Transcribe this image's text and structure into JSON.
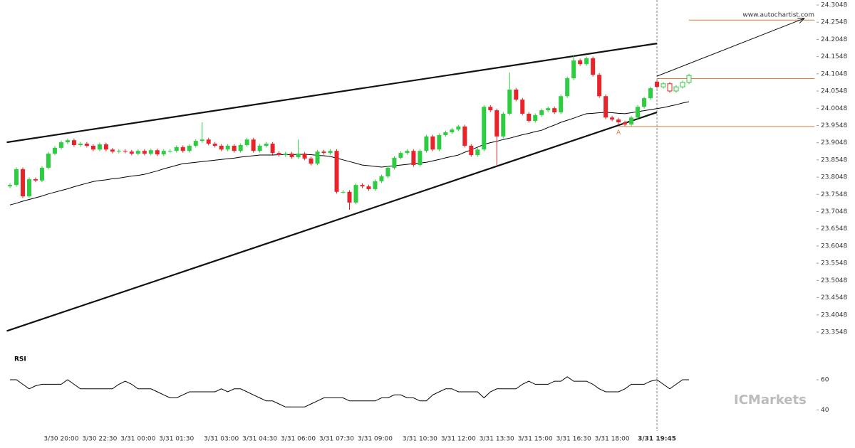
{
  "chart_data": [
    {
      "type": "candlestick",
      "categories": [
        null,
        null,
        null,
        null,
        null,
        null,
        null,
        null,
        "3/30 20:00",
        null,
        null,
        null,
        null,
        null,
        "3/30 22:30",
        null,
        null,
        null,
        null,
        null,
        "3/31 00:00",
        null,
        null,
        null,
        null,
        null,
        "3/31 01:30",
        null,
        null,
        null,
        null,
        null,
        null,
        "3/31 03:00",
        null,
        null,
        null,
        null,
        null,
        "3/31 04:30",
        null,
        null,
        null,
        null,
        null,
        "3/31 06:00",
        null,
        null,
        null,
        null,
        null,
        "3/31 07:30",
        null,
        null,
        null,
        null,
        null,
        "3/31 09:00",
        null,
        null,
        null,
        null,
        null,
        null,
        "3/31 10:30",
        null,
        null,
        null,
        null,
        null,
        "3/31 12:00",
        null,
        null,
        null,
        null,
        null,
        "3/31 13:30",
        null,
        null,
        null,
        null,
        null,
        "3/31 15:00",
        null,
        null,
        null,
        null,
        null,
        "3/31 16:30",
        null,
        null,
        null,
        null,
        null,
        "3/31 18:00",
        null,
        null,
        null,
        null,
        null,
        null,
        "3/31 19:45",
        null,
        null,
        null,
        null,
        null
      ],
      "open": [
        23.778,
        23.782,
        23.828,
        23.749,
        23.799,
        23.795,
        23.832,
        23.873,
        23.89,
        23.906,
        23.912,
        23.898,
        23.902,
        23.896,
        23.885,
        23.9,
        23.885,
        23.879,
        23.881,
        23.879,
        23.873,
        23.881,
        23.873,
        23.883,
        23.871,
        23.881,
        23.881,
        23.892,
        23.881,
        23.896,
        23.91,
        23.914,
        23.902,
        23.896,
        23.885,
        23.896,
        23.881,
        23.898,
        23.914,
        23.881,
        23.896,
        23.902,
        23.875,
        23.869,
        23.873,
        23.863,
        23.873,
        23.859,
        23.844,
        23.879,
        23.875,
        23.881,
        23.762,
        23.762,
        23.731,
        23.782,
        23.778,
        23.77,
        23.793,
        23.807,
        23.832,
        23.861,
        23.875,
        23.881,
        23.84,
        23.881,
        23.923,
        23.885,
        23.927,
        23.935,
        23.943,
        23.952,
        23.896,
        23.869,
        23.885,
        24.009,
        23.999,
        23.923,
        23.989,
        24.059,
        24.03,
        23.989,
        23.968,
        23.985,
        23.999,
        24.005,
        23.993,
        24.04,
        24.092,
        24.144,
        24.133,
        24.15,
        24.102,
        24.04,
        23.978,
        23.972,
        23.964,
        23.958,
        23.978,
        24.009,
        24.034,
        24.082,
        24.067,
        24.076,
        24.055,
        24.067,
        24.08
      ],
      "high": [
        23.787,
        23.833,
        23.833,
        23.804,
        23.804,
        23.837,
        23.878,
        23.895,
        23.911,
        23.917,
        23.917,
        23.907,
        23.907,
        23.901,
        23.905,
        23.905,
        23.89,
        23.886,
        23.886,
        23.884,
        23.886,
        23.886,
        23.888,
        23.888,
        23.886,
        23.886,
        23.897,
        23.897,
        23.901,
        23.915,
        23.964,
        23.919,
        23.907,
        23.901,
        23.901,
        23.901,
        23.903,
        23.919,
        23.919,
        23.901,
        23.907,
        23.907,
        23.88,
        23.878,
        23.878,
        23.914,
        23.878,
        23.864,
        23.884,
        23.884,
        23.886,
        23.886,
        23.767,
        23.767,
        23.787,
        23.787,
        23.783,
        23.798,
        23.812,
        23.837,
        23.866,
        23.88,
        23.886,
        23.886,
        23.886,
        23.928,
        23.928,
        23.932,
        23.94,
        23.948,
        23.957,
        23.957,
        23.901,
        23.89,
        24.014,
        24.014,
        24.004,
        23.994,
        24.109,
        24.064,
        24.035,
        23.994,
        23.99,
        24.004,
        24.01,
        24.01,
        24.045,
        24.097,
        24.16,
        24.149,
        24.155,
        24.155,
        24.107,
        24.045,
        23.983,
        23.977,
        23.969,
        23.983,
        24.014,
        24.039,
        24.068,
        24.087,
        24.081,
        24.081,
        24.072,
        24.085,
        24.105
      ],
      "low": [
        23.773,
        23.777,
        23.744,
        23.744,
        23.79,
        23.79,
        23.827,
        23.868,
        23.885,
        23.901,
        23.893,
        23.893,
        23.891,
        23.88,
        23.88,
        23.88,
        23.874,
        23.874,
        23.874,
        23.868,
        23.868,
        23.868,
        23.868,
        23.866,
        23.866,
        23.876,
        23.876,
        23.876,
        23.876,
        23.891,
        23.905,
        23.897,
        23.891,
        23.88,
        23.88,
        23.876,
        23.876,
        23.893,
        23.876,
        23.876,
        23.891,
        23.87,
        23.864,
        23.864,
        23.858,
        23.858,
        23.854,
        23.839,
        23.839,
        23.87,
        23.87,
        23.757,
        23.757,
        23.71,
        23.726,
        23.773,
        23.765,
        23.765,
        23.788,
        23.802,
        23.827,
        23.856,
        23.87,
        23.835,
        23.835,
        23.876,
        23.88,
        23.88,
        23.922,
        23.93,
        23.938,
        23.891,
        23.864,
        23.864,
        23.88,
        23.994,
        23.84,
        23.918,
        23.984,
        24.025,
        23.984,
        23.963,
        23.963,
        23.98,
        23.994,
        23.988,
        23.988,
        24.035,
        24.087,
        24.128,
        24.128,
        24.097,
        24.035,
        23.973,
        23.967,
        23.959,
        23.953,
        23.953,
        23.973,
        24.004,
        24.029,
        24.062,
        24.062,
        24.05,
        24.05,
        24.062,
        24.075
      ],
      "close": [
        23.782,
        23.828,
        23.749,
        23.799,
        23.795,
        23.832,
        23.873,
        23.89,
        23.906,
        23.912,
        23.898,
        23.902,
        23.896,
        23.885,
        23.9,
        23.885,
        23.879,
        23.881,
        23.879,
        23.873,
        23.881,
        23.873,
        23.883,
        23.871,
        23.881,
        23.881,
        23.892,
        23.881,
        23.896,
        23.91,
        23.914,
        23.902,
        23.896,
        23.885,
        23.896,
        23.881,
        23.898,
        23.914,
        23.881,
        23.896,
        23.902,
        23.875,
        23.869,
        23.873,
        23.863,
        23.873,
        23.859,
        23.844,
        23.879,
        23.875,
        23.881,
        23.762,
        23.762,
        23.731,
        23.782,
        23.778,
        23.77,
        23.793,
        23.807,
        23.832,
        23.861,
        23.875,
        23.881,
        23.84,
        23.881,
        23.923,
        23.885,
        23.927,
        23.935,
        23.943,
        23.952,
        23.896,
        23.869,
        23.885,
        24.009,
        23.999,
        23.923,
        23.989,
        24.059,
        24.03,
        23.989,
        23.968,
        23.985,
        23.999,
        24.005,
        23.993,
        24.04,
        24.092,
        24.144,
        24.133,
        24.15,
        24.102,
        24.04,
        23.978,
        23.972,
        23.964,
        23.958,
        23.978,
        24.009,
        24.034,
        24.063,
        24.067,
        24.076,
        24.055,
        24.067,
        24.08,
        24.1
      ],
      "up_color": "#2ecc40",
      "down_color": "#e8232a",
      "ma": {
        "color": "#000000",
        "values": [
          23.724,
          23.729,
          23.735,
          23.74,
          23.745,
          23.75,
          23.756,
          23.761,
          23.766,
          23.771,
          23.777,
          23.782,
          23.787,
          23.792,
          23.795,
          23.797,
          23.8,
          23.802,
          23.805,
          23.808,
          23.81,
          23.813,
          23.818,
          23.823,
          23.829,
          23.834,
          23.839,
          23.844,
          23.846,
          23.848,
          23.85,
          23.852,
          23.854,
          23.856,
          23.858,
          23.86,
          23.863,
          23.865,
          23.867,
          23.869,
          23.869,
          23.869,
          23.87,
          23.87,
          23.87,
          23.871,
          23.871,
          23.87,
          23.868,
          23.867,
          23.865,
          23.86,
          23.855,
          23.85,
          23.845,
          23.84,
          23.838,
          23.836,
          23.834,
          23.836,
          23.838,
          23.84,
          23.842,
          23.844,
          23.846,
          23.848,
          23.852,
          23.856,
          23.861,
          23.865,
          23.869,
          23.877,
          23.884,
          23.892,
          23.9,
          23.905,
          23.909,
          23.914,
          23.918,
          23.923,
          23.928,
          23.932,
          23.937,
          23.941,
          23.949,
          23.956,
          23.964,
          23.97,
          23.976,
          23.983,
          23.989,
          23.99,
          23.992,
          23.993,
          23.992,
          23.99,
          23.989,
          23.992,
          23.995,
          23.998,
          24.001,
          24.004,
          24.007,
          24.011,
          24.015,
          24.02,
          24.024
        ]
      },
      "ylim": [
        23.3548,
        24.3048
      ],
      "yticks": [
        24.3048,
        24.2548,
        24.2048,
        24.1548,
        24.1048,
        24.0548,
        24.0048,
        23.9548,
        23.9048,
        23.8548,
        23.8048,
        23.7548,
        23.7048,
        23.6548,
        23.6048,
        23.5548,
        23.5048,
        23.4548,
        23.4048,
        23.3548
      ],
      "trendlines": [
        {
          "from": [
            -0.5,
            23.906
          ],
          "to": [
            101,
            24.193
          ]
        },
        {
          "from": [
            -0.5,
            23.358
          ],
          "to": [
            101,
            23.993
          ]
        }
      ],
      "arrow": {
        "from": [
          101,
          24.098
        ],
        "to": [
          124,
          24.266
        ]
      },
      "levels": [
        {
          "from": [
            106,
            24.261
          ],
          "to": [
            125.6,
            24.261
          ]
        },
        {
          "from": [
            101,
            24.091
          ],
          "to": [
            125.6,
            24.091
          ]
        },
        {
          "from": [
            95,
            23.952
          ],
          "to": [
            125.6,
            23.952
          ]
        }
      ],
      "level_color": "#e07b39",
      "point_label": {
        "text": "A",
        "at": [
          95,
          23.934
        ]
      }
    },
    {
      "type": "line",
      "title": "RSI",
      "values": [
        60,
        60,
        57,
        54,
        56,
        57,
        57,
        57,
        57,
        60,
        57,
        54,
        54,
        54,
        54,
        54,
        54,
        57,
        59,
        57,
        54,
        54,
        54,
        52,
        50,
        48,
        48,
        50,
        52,
        52,
        52,
        52,
        52,
        54,
        52,
        54,
        54,
        52,
        50,
        48,
        46,
        46,
        44,
        42,
        42,
        42,
        42,
        44,
        46,
        48,
        48,
        48,
        48,
        46,
        46,
        46,
        46,
        46,
        48,
        48,
        50,
        50,
        48,
        48,
        46,
        46,
        50,
        52,
        54,
        54,
        52,
        52,
        52,
        52,
        48,
        52,
        54,
        54,
        54,
        54,
        57,
        59,
        57,
        57,
        57,
        59,
        59,
        62,
        59,
        59,
        59,
        57,
        54,
        52,
        52,
        52,
        54,
        57,
        57,
        57,
        59,
        60,
        57,
        54,
        57,
        60,
        60
      ],
      "color": "#000000",
      "ylim": [
        30,
        76
      ],
      "yticks": [
        60,
        40
      ]
    }
  ],
  "watermark": "www.autochartist.com",
  "brand": "ICMarkets"
}
